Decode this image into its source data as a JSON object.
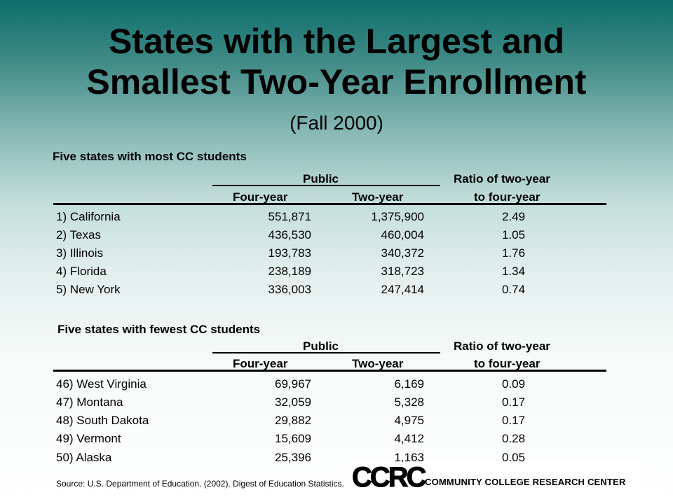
{
  "title_line1": "States with the Largest and",
  "title_line2": "Smallest Two-Year Enrollment",
  "subtitle": "(Fall 2000)",
  "headers": {
    "public": "Public",
    "ratio_line1": "Ratio of two-year",
    "four_year": "Four-year",
    "two_year": "Two-year",
    "ratio_line2": "to four-year"
  },
  "sections": [
    {
      "title": "Five states with most CC students",
      "rows": [
        {
          "state": "1) California",
          "four": "551,871",
          "two": "1,375,900",
          "ratio": "2.49"
        },
        {
          "state": "2) Texas",
          "four": "436,530",
          "two": "460,004",
          "ratio": "1.05"
        },
        {
          "state": "3) Illinois",
          "four": "193,783",
          "two": "340,372",
          "ratio": "1.76"
        },
        {
          "state": "4) Florida",
          "four": "238,189",
          "two": "318,723",
          "ratio": "1.34"
        },
        {
          "state": "5) New York",
          "four": "336,003",
          "two": "247,414",
          "ratio": "0.74"
        }
      ]
    },
    {
      "title": "Five states with fewest CC students",
      "rows": [
        {
          "state": "46) West Virginia",
          "four": "69,967",
          "two": "6,169",
          "ratio": "0.09"
        },
        {
          "state": "47) Montana",
          "four": "32,059",
          "two": "5,328",
          "ratio": "0.17"
        },
        {
          "state": "48) South Dakota",
          "four": "29,882",
          "two": "4,975",
          "ratio": "0.17"
        },
        {
          "state": "49) Vermont",
          "four": "15,609",
          "two": "4,412",
          "ratio": "0.28"
        },
        {
          "state": "50) Alaska",
          "four": "25,396",
          "two": "1,163",
          "ratio": "0.05"
        }
      ]
    }
  ],
  "source": "Source: U.S. Department of Education. (2002). Digest of Education Statistics.",
  "logo": {
    "mark": "CCRC",
    "text": "COMMUNITY COLLEGE RESEARCH CENTER"
  }
}
